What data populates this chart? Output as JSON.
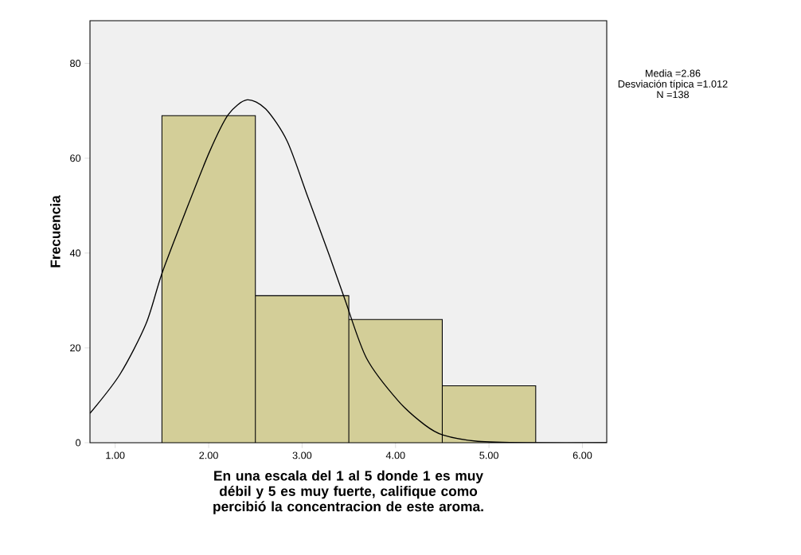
{
  "chart_data": {
    "type": "histogram",
    "xlabel": "En una escala del 1 al 5 donde 1 es muy débil y 5 es muy fuerte, califique como percibió la concentracion de este aroma.",
    "ylabel": "Frecuencia",
    "bins": [
      1.5,
      2.5,
      3.5,
      4.5,
      5.5
    ],
    "values": [
      69,
      31,
      26,
      12
    ],
    "color": "#d3ce98",
    "series": [
      {
        "type": "line",
        "color": "#000000",
        "x": [
          0.73,
          1.05,
          1.33,
          1.5,
          1.76,
          2.01,
          2.21,
          2.41,
          2.61,
          2.84,
          3.06,
          3.29,
          3.46,
          3.69,
          4.03,
          4.31,
          4.51,
          4.88,
          5.45,
          6.26
        ],
        "values": [
          6.2,
          14.4,
          25.1,
          35.7,
          49.1,
          61.4,
          69.2,
          72.3,
          70.4,
          63.6,
          51.9,
          39.6,
          30.1,
          17.8,
          8.8,
          3.8,
          1.6,
          0.3,
          0,
          0
        ]
      }
    ],
    "xlim": [
      0.73,
      6.26
    ],
    "ylim": [
      0,
      89
    ],
    "xticks": [
      {
        "value": 1,
        "label": "1.00"
      },
      {
        "value": 2,
        "label": "2.00"
      },
      {
        "value": 3,
        "label": "3.00"
      },
      {
        "value": 4,
        "label": "4.00"
      },
      {
        "value": 5,
        "label": "5.00"
      },
      {
        "value": 6,
        "label": "6.00"
      }
    ],
    "yticks": [
      0,
      20,
      40,
      60,
      80
    ],
    "grid": false,
    "annotations": [
      "Media =2.86",
      "Desviación típica =1.012",
      "N =138"
    ]
  }
}
